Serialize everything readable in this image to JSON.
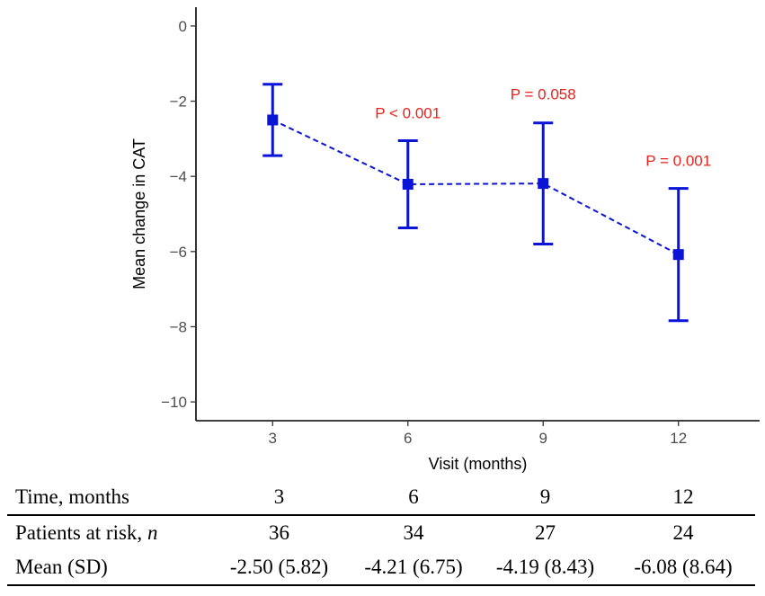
{
  "chart_data": {
    "type": "errorbar-line",
    "xlabel": "Visit (months)",
    "ylabel": "Mean change in CAT",
    "x": [
      3,
      6,
      9,
      12
    ],
    "x_ticks": [
      "3",
      "6",
      "9",
      "12"
    ],
    "xlim": [
      1.3,
      13.8
    ],
    "ylim": [
      -10.5,
      0.5
    ],
    "y_ticks": [
      0,
      -2,
      -4,
      -6,
      -8,
      -10
    ],
    "y_tick_labels": [
      "0",
      "−2",
      "−4",
      "−6",
      "−8",
      "−10"
    ],
    "series": [
      {
        "name": "Mean change in CAT",
        "values": [
          -2.5,
          -4.21,
          -4.19,
          -6.08
        ],
        "ci_upper": [
          -1.55,
          -3.05,
          -2.58,
          -4.32
        ],
        "ci_lower": [
          -3.45,
          -5.37,
          -5.8,
          -7.84
        ],
        "color": "#0a14d6",
        "line_style": "dashed",
        "marker": "square"
      }
    ],
    "annotations": [
      {
        "x": 6,
        "y": -2.45,
        "text": "P < 0.001",
        "color": "#e8231e"
      },
      {
        "x": 9,
        "y": -1.95,
        "text": "P = 0.058",
        "color": "#e8231e"
      },
      {
        "x": 12,
        "y": -3.72,
        "text": "P = 0.001",
        "color": "#e8231e"
      }
    ]
  },
  "table": {
    "header": {
      "label": "Time, months",
      "values": [
        "3",
        "6",
        "9",
        "12"
      ]
    },
    "rows": [
      {
        "label": "Patients at risk, ",
        "label_italic": "n",
        "values": [
          "36",
          "34",
          "27",
          "24"
        ]
      },
      {
        "label": "Mean (SD)",
        "label_italic": "",
        "values": [
          "-2.50 (5.82)",
          "-4.21 (6.75)",
          "-4.19 (8.43)",
          "-6.08 (8.64)"
        ]
      }
    ]
  }
}
